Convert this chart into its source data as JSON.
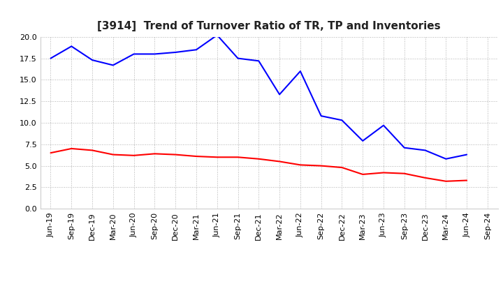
{
  "title": "[3914]  Trend of Turnover Ratio of TR, TP and Inventories",
  "xlabels": [
    "Jun-19",
    "Sep-19",
    "Dec-19",
    "Mar-20",
    "Jun-20",
    "Sep-20",
    "Dec-20",
    "Mar-21",
    "Jun-21",
    "Sep-21",
    "Dec-21",
    "Mar-22",
    "Jun-22",
    "Sep-22",
    "Dec-22",
    "Mar-23",
    "Jun-23",
    "Sep-23",
    "Dec-23",
    "Mar-24",
    "Jun-24",
    "Sep-24"
  ],
  "trade_receivables": [
    6.5,
    7.0,
    6.8,
    6.3,
    6.2,
    6.4,
    6.3,
    6.1,
    6.0,
    6.0,
    5.8,
    5.5,
    5.1,
    5.0,
    4.8,
    4.0,
    4.2,
    4.1,
    3.6,
    3.2,
    3.3,
    null
  ],
  "trade_payables": [
    17.5,
    18.9,
    17.3,
    16.7,
    18.0,
    18.0,
    18.2,
    18.5,
    20.2,
    17.5,
    17.2,
    13.3,
    16.0,
    10.8,
    10.3,
    7.9,
    9.7,
    7.1,
    6.8,
    5.8,
    6.3,
    null
  ],
  "inventories": [
    null,
    null,
    null,
    null,
    null,
    null,
    null,
    null,
    null,
    null,
    null,
    null,
    null,
    null,
    null,
    null,
    null,
    null,
    null,
    null,
    null,
    null
  ],
  "tr_color": "#ff0000",
  "tp_color": "#0000ff",
  "inv_color": "#008000",
  "ylim": [
    0.0,
    20.0
  ],
  "yticks": [
    0.0,
    2.5,
    5.0,
    7.5,
    10.0,
    12.5,
    15.0,
    17.5,
    20.0
  ],
  "background_color": "#ffffff",
  "grid_color": "#b0b0b0",
  "title_fontsize": 11,
  "tick_fontsize": 8,
  "legend_fontsize": 9
}
